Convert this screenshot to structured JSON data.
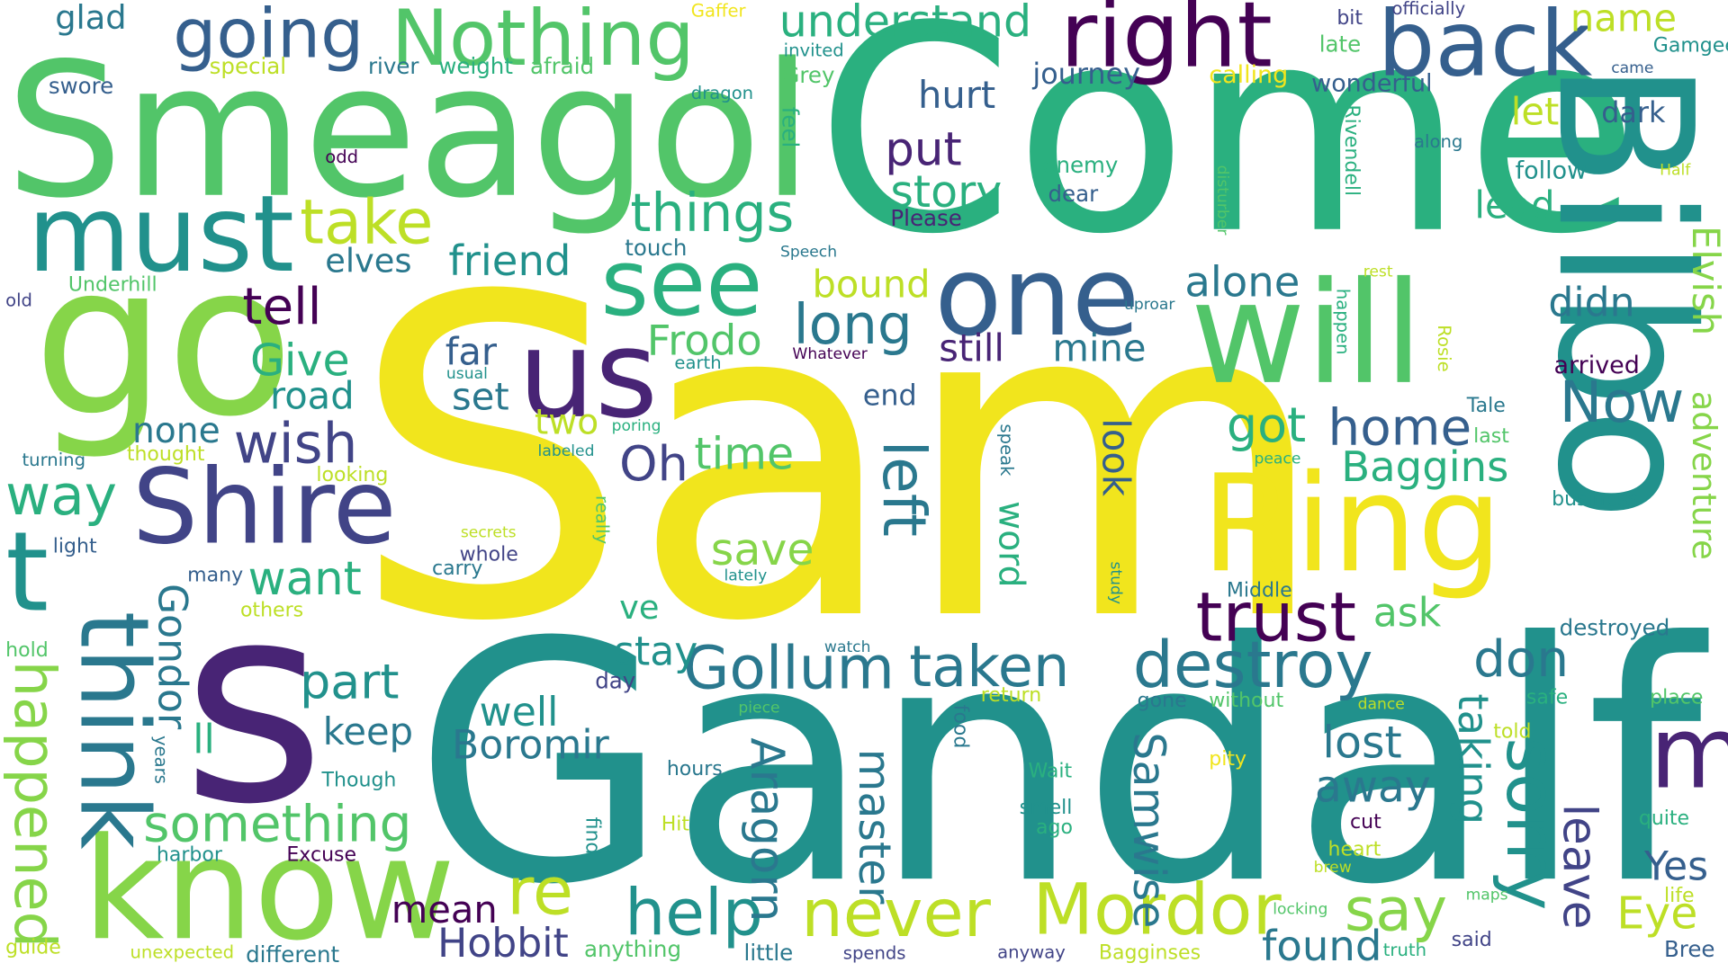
{
  "palette": {
    "y": "#f1e51d",
    "yg": "#bddf26",
    "lg": "#86d549",
    "g": "#52c569",
    "tg": "#2ab07f",
    "t": "#21918c",
    "tb": "#2a788e",
    "b": "#355f8d",
    "ib": "#414487",
    "p": "#482475",
    "dp": "#440154"
  },
  "words": [
    {
      "id": "sam",
      "text": "Sam"
    },
    {
      "id": "gandalf",
      "text": "Gandalf"
    },
    {
      "id": "come",
      "text": "Come"
    },
    {
      "id": "bilbo",
      "text": "Bilbo"
    },
    {
      "id": "smeagol",
      "text": "Smeagol"
    },
    {
      "id": "s",
      "text": "s"
    },
    {
      "id": "go",
      "text": "go"
    },
    {
      "id": "know",
      "text": "know"
    },
    {
      "id": "ring",
      "text": "Ring"
    },
    {
      "id": "will",
      "text": "will"
    },
    {
      "id": "one",
      "text": "one"
    },
    {
      "id": "us",
      "text": "us"
    },
    {
      "id": "shire",
      "text": "Shire"
    },
    {
      "id": "right",
      "text": "right"
    },
    {
      "id": "back",
      "text": "back"
    },
    {
      "id": "nothing",
      "text": "Nothing"
    },
    {
      "id": "must",
      "text": "must"
    },
    {
      "id": "think",
      "text": "think"
    },
    {
      "id": "t",
      "text": "t"
    },
    {
      "id": "see",
      "text": "see"
    },
    {
      "id": "m",
      "text": "m"
    },
    {
      "id": "mordor",
      "text": "Mordor"
    },
    {
      "id": "never",
      "text": "never"
    },
    {
      "id": "trust",
      "text": "trust"
    },
    {
      "id": "destroy",
      "text": "destroy"
    },
    {
      "id": "gollum",
      "text": "Gollum"
    },
    {
      "id": "going",
      "text": "going"
    },
    {
      "id": "sorry",
      "text": "sorry"
    },
    {
      "id": "help",
      "text": "help"
    },
    {
      "id": "something",
      "text": "something"
    },
    {
      "id": "happened",
      "text": "happened"
    },
    {
      "id": "take",
      "text": "take"
    },
    {
      "id": "left",
      "text": "left"
    },
    {
      "id": "taken",
      "text": "taken"
    },
    {
      "id": "things",
      "text": "things"
    },
    {
      "id": "understand",
      "text": "understand"
    },
    {
      "id": "say",
      "text": "say"
    },
    {
      "id": "re",
      "text": "re"
    },
    {
      "id": "long",
      "text": "long"
    },
    {
      "id": "now",
      "text": "Now"
    },
    {
      "id": "home",
      "text": "home"
    },
    {
      "id": "don",
      "text": "don"
    },
    {
      "id": "put",
      "text": "put"
    },
    {
      "id": "story",
      "text": "story"
    },
    {
      "id": "tell",
      "text": "tell"
    },
    {
      "id": "wish",
      "text": "wish"
    },
    {
      "id": "way",
      "text": "way"
    },
    {
      "id": "alone",
      "text": "alone"
    },
    {
      "id": "got",
      "text": "got"
    },
    {
      "id": "adventure",
      "text": "adventure"
    },
    {
      "id": "leave",
      "text": "leave"
    },
    {
      "id": "elvish",
      "text": "Elvish"
    },
    {
      "id": "eye",
      "text": "Eye"
    },
    {
      "id": "frodo",
      "text": "Frodo"
    },
    {
      "id": "friend",
      "text": "friend"
    },
    {
      "id": "part",
      "text": "part"
    },
    {
      "id": "give",
      "text": "Give"
    },
    {
      "id": "want",
      "text": "want"
    },
    {
      "id": "gondor",
      "text": "Gondor"
    },
    {
      "id": "aragorn",
      "text": "Aragorn"
    },
    {
      "id": "samwise",
      "text": "Samwise"
    },
    {
      "id": "master",
      "text": "master"
    },
    {
      "id": "taking",
      "text": "taking"
    },
    {
      "id": "baggins",
      "text": "Baggins"
    },
    {
      "id": "boromir",
      "text": "Boromir"
    },
    {
      "id": "hobbit",
      "text": "Hobbit"
    },
    {
      "id": "found",
      "text": "found"
    },
    {
      "id": "oh",
      "text": "Oh"
    },
    {
      "id": "time",
      "text": "time"
    },
    {
      "id": "save",
      "text": "save"
    },
    {
      "id": "lost",
      "text": "lost"
    },
    {
      "id": "away",
      "text": "away"
    },
    {
      "id": "didn",
      "text": "didn"
    },
    {
      "id": "yes",
      "text": "Yes"
    },
    {
      "id": "mean",
      "text": "mean"
    },
    {
      "id": "keep",
      "text": "keep"
    },
    {
      "id": "hurt",
      "text": "hurt"
    },
    {
      "id": "still",
      "text": "still"
    },
    {
      "id": "mine",
      "text": "mine"
    },
    {
      "id": "bound",
      "text": "bound"
    },
    {
      "id": "road",
      "text": "road"
    },
    {
      "id": "far",
      "text": "far"
    },
    {
      "id": "set",
      "text": "set"
    },
    {
      "id": "stay",
      "text": "stay"
    },
    {
      "id": "lead",
      "text": "lead"
    },
    {
      "id": "let",
      "text": "let"
    },
    {
      "id": "name",
      "text": "name"
    },
    {
      "id": "elves",
      "text": "elves"
    },
    {
      "id": "none",
      "text": "none"
    },
    {
      "id": "two",
      "text": "two"
    },
    {
      "id": "word",
      "text": "word"
    },
    {
      "id": "look",
      "text": "look"
    },
    {
      "id": "ask",
      "text": "ask"
    },
    {
      "id": "ve",
      "text": "ve"
    },
    {
      "id": "well",
      "text": "well"
    },
    {
      "id": "ll",
      "text": "ll"
    },
    {
      "id": "glad",
      "text": "glad"
    },
    {
      "id": "journey",
      "text": "journey"
    },
    {
      "id": "end",
      "text": "end"
    },
    {
      "id": "dark",
      "text": "dark"
    },
    {
      "id": "follow",
      "text": "follow"
    },
    {
      "id": "arrived",
      "text": "arrived"
    },
    {
      "id": "gamgee",
      "text": "Gamgee"
    },
    {
      "id": "wonderful",
      "text": "wonderful"
    },
    {
      "id": "calling",
      "text": "calling"
    },
    {
      "id": "late",
      "text": "late"
    },
    {
      "id": "bit",
      "text": "bit"
    },
    {
      "id": "officially",
      "text": "officially"
    },
    {
      "id": "came",
      "text": "came"
    },
    {
      "id": "grey",
      "text": "Grey"
    },
    {
      "id": "invited",
      "text": "invited"
    },
    {
      "id": "gaffer",
      "text": "Gaffer"
    },
    {
      "id": "river",
      "text": "river"
    },
    {
      "id": "weight",
      "text": "weight"
    },
    {
      "id": "afraid",
      "text": "afraid"
    },
    {
      "id": "special",
      "text": "special"
    },
    {
      "id": "swore",
      "text": "swore"
    },
    {
      "id": "dragon",
      "text": "dragon"
    },
    {
      "id": "feel",
      "text": "feel"
    },
    {
      "id": "odd",
      "text": "odd"
    },
    {
      "id": "enemy",
      "text": "enemy"
    },
    {
      "id": "dear",
      "text": "dear"
    },
    {
      "id": "please",
      "text": "Please"
    },
    {
      "id": "along",
      "text": "along"
    },
    {
      "id": "half",
      "text": "Half"
    },
    {
      "id": "touch",
      "text": "touch"
    },
    {
      "id": "speech",
      "text": "Speech"
    },
    {
      "id": "disturber",
      "text": "disturber"
    },
    {
      "id": "rivendell",
      "text": "Rivendell"
    },
    {
      "id": "underhill",
      "text": "Underhill"
    },
    {
      "id": "old",
      "text": "old"
    },
    {
      "id": "rest",
      "text": "rest"
    },
    {
      "id": "uproar",
      "text": "uproar"
    },
    {
      "id": "whatever",
      "text": "Whatever"
    },
    {
      "id": "earth",
      "text": "earth"
    },
    {
      "id": "usual",
      "text": "usual"
    },
    {
      "id": "rosie",
      "text": "Rosie"
    },
    {
      "id": "happen",
      "text": "happen"
    },
    {
      "id": "tale",
      "text": "Tale"
    },
    {
      "id": "last",
      "text": "last"
    },
    {
      "id": "peace",
      "text": "peace"
    },
    {
      "id": "business",
      "text": "business"
    },
    {
      "id": "poring",
      "text": "poring"
    },
    {
      "id": "turning",
      "text": "turning"
    },
    {
      "id": "thought",
      "text": "thought"
    },
    {
      "id": "labeled",
      "text": "labeled"
    },
    {
      "id": "looking",
      "text": "looking"
    },
    {
      "id": "speak",
      "text": "speak"
    },
    {
      "id": "really",
      "text": "really"
    },
    {
      "id": "secrets",
      "text": "secrets"
    },
    {
      "id": "whole",
      "text": "whole"
    },
    {
      "id": "carry",
      "text": "carry"
    },
    {
      "id": "light",
      "text": "light"
    },
    {
      "id": "many",
      "text": "many"
    },
    {
      "id": "lately",
      "text": "lateIy"
    },
    {
      "id": "others",
      "text": "others"
    },
    {
      "id": "study",
      "text": "study"
    },
    {
      "id": "middle",
      "text": "Middle"
    },
    {
      "id": "destroyed",
      "text": "destroyed"
    },
    {
      "id": "hold",
      "text": "hold"
    },
    {
      "id": "watch",
      "text": "watch"
    },
    {
      "id": "day",
      "text": "day"
    },
    {
      "id": "return",
      "text": "return"
    },
    {
      "id": "gone",
      "text": "gone"
    },
    {
      "id": "without",
      "text": "without"
    },
    {
      "id": "dance",
      "text": "dance"
    },
    {
      "id": "safe",
      "text": "safe"
    },
    {
      "id": "place",
      "text": "place"
    },
    {
      "id": "piece",
      "text": "piece"
    },
    {
      "id": "food",
      "text": "food"
    },
    {
      "id": "told",
      "text": "told"
    },
    {
      "id": "years",
      "text": "years"
    },
    {
      "id": "though",
      "text": "Though"
    },
    {
      "id": "hours",
      "text": "hours"
    },
    {
      "id": "wait",
      "text": "Wait"
    },
    {
      "id": "pity",
      "text": "pity"
    },
    {
      "id": "smell",
      "text": "smell"
    },
    {
      "id": "ago",
      "text": "ago"
    },
    {
      "id": "cut",
      "text": "cut"
    },
    {
      "id": "quite",
      "text": "quite"
    },
    {
      "id": "harbor",
      "text": "harbor"
    },
    {
      "id": "excuse",
      "text": "Excuse"
    },
    {
      "id": "find",
      "text": "find"
    },
    {
      "id": "hit",
      "text": "Hit"
    },
    {
      "id": "heart",
      "text": "heart"
    },
    {
      "id": "brew",
      "text": "brew"
    },
    {
      "id": "life",
      "text": "life"
    },
    {
      "id": "maps",
      "text": "maps"
    },
    {
      "id": "locking",
      "text": "locking"
    },
    {
      "id": "guide",
      "text": "guide"
    },
    {
      "id": "unexpected",
      "text": "unexpected"
    },
    {
      "id": "different",
      "text": "different"
    },
    {
      "id": "anything",
      "text": "anything"
    },
    {
      "id": "little",
      "text": "little"
    },
    {
      "id": "spends",
      "text": "spends"
    },
    {
      "id": "anyway",
      "text": "anyway"
    },
    {
      "id": "bagginses",
      "text": "Bagginses"
    },
    {
      "id": "truth",
      "text": "truth"
    },
    {
      "id": "said",
      "text": "said"
    },
    {
      "id": "bree",
      "text": "Bree"
    }
  ]
}
